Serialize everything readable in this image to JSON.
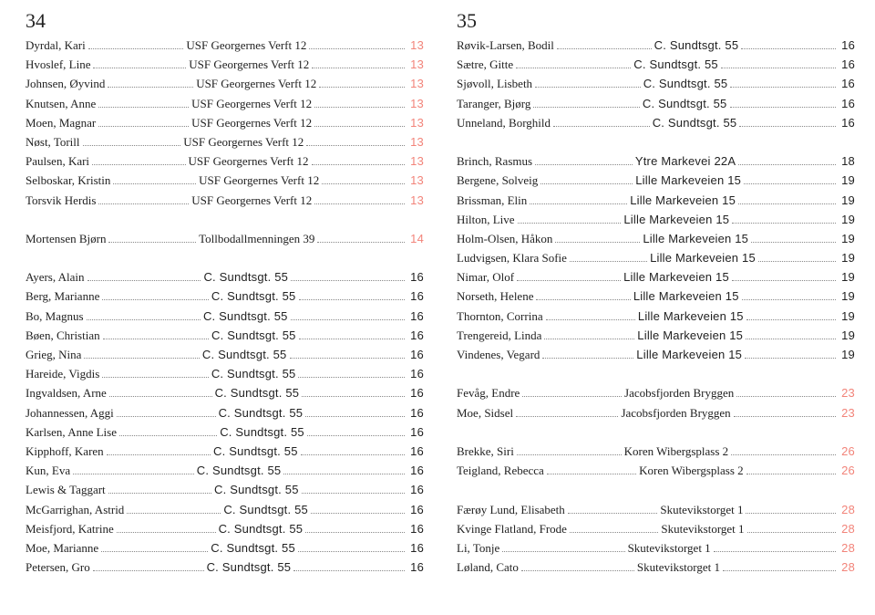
{
  "left": {
    "page": "34",
    "groups": [
      [
        {
          "name": "Dyrdal, Kari",
          "addr": "USF Georgernes Verft 12",
          "num": "13",
          "style": "coral"
        },
        {
          "name": "Hvoslef, Line",
          "addr": "USF Georgernes Verft 12",
          "num": "13",
          "style": "coral"
        },
        {
          "name": "Johnsen, Øyvind",
          "addr": "USF Georgernes Verft 12",
          "num": "13",
          "style": "coral"
        },
        {
          "name": "Knutsen, Anne",
          "addr": "USF Georgernes Verft 12",
          "num": "13",
          "style": "coral"
        },
        {
          "name": "Moen, Magnar",
          "addr": "USF Georgernes Verft 12",
          "num": "13",
          "style": "coral"
        },
        {
          "name": "Nøst, Torill",
          "addr": "USF Georgernes Verft 12",
          "num": "13",
          "style": "coral"
        },
        {
          "name": "Paulsen, Kari",
          "addr": "USF Georgernes Verft 12",
          "num": "13",
          "style": "coral"
        },
        {
          "name": "Selboskar, Kristin",
          "addr": "USF Georgernes Verft 12",
          "num": "13",
          "style": "coral"
        },
        {
          "name": "Torsvik Herdis",
          "addr": "USF Georgernes Verft 12",
          "num": "13",
          "style": "coral"
        }
      ],
      [
        {
          "name": "Mortensen Bjørn",
          "addr": "Tollbodallmenningen 39",
          "num": "14",
          "style": "coral"
        }
      ],
      [
        {
          "name": "Ayers, Alain",
          "addr": "C. Sundtsgt. 55",
          "num": "16",
          "style": "sans"
        },
        {
          "name": "Berg, Marianne",
          "addr": "C. Sundtsgt. 55",
          "num": "16",
          "style": "sans"
        },
        {
          "name": "Bo, Magnus",
          "addr": "C. Sundtsgt. 55",
          "num": "16",
          "style": "sans"
        },
        {
          "name": "Bøen, Christian",
          "addr": "C. Sundtsgt. 55",
          "num": "16",
          "style": "sans"
        },
        {
          "name": "Grieg, Nina",
          "addr": "C. Sundtsgt. 55",
          "num": "16",
          "style": "sans"
        },
        {
          "name": "Hareide, Vigdis",
          "addr": "C. Sundtsgt. 55",
          "num": "16",
          "style": "sans"
        },
        {
          "name": "Ingvaldsen, Arne",
          "addr": "C. Sundtsgt. 55",
          "num": "16",
          "style": "sans"
        },
        {
          "name": "Johannessen, Aggi",
          "addr": "C. Sundtsgt. 55",
          "num": "16",
          "style": "sans"
        },
        {
          "name": "Karlsen, Anne Lise",
          "addr": "C. Sundtsgt. 55",
          "num": "16",
          "style": "sans"
        },
        {
          "name": "Kipphoff, Karen",
          "addr": "C. Sundtsgt. 55",
          "num": "16",
          "style": "sans"
        },
        {
          "name": "Kun, Eva",
          "addr": "C. Sundtsgt. 55",
          "num": "16",
          "style": "sans"
        },
        {
          "name": "Lewis & Taggart",
          "addr": "C. Sundtsgt. 55",
          "num": "16",
          "style": "sans"
        },
        {
          "name": "McGarrighan, Astrid",
          "addr": "C. Sundtsgt. 55",
          "num": "16",
          "style": "sans"
        },
        {
          "name": "Meisfjord, Katrine",
          "addr": "C. Sundtsgt. 55",
          "num": "16",
          "style": "sans"
        },
        {
          "name": "Moe, Marianne",
          "addr": "C. Sundtsgt. 55",
          "num": "16",
          "style": "sans"
        },
        {
          "name": "Petersen, Gro",
          "addr": "C. Sundtsgt. 55",
          "num": "16",
          "style": "sans"
        }
      ]
    ]
  },
  "right": {
    "page": "35",
    "groups": [
      [
        {
          "name": "Røvik-Larsen, Bodil",
          "addr": "C. Sundtsgt. 55",
          "num": "16",
          "style": "sans"
        },
        {
          "name": "Sætre, Gitte",
          "addr": "C. Sundtsgt. 55",
          "num": "16",
          "style": "sans"
        },
        {
          "name": "Sjøvoll, Lisbeth",
          "addr": "C. Sundtsgt. 55",
          "num": "16",
          "style": "sans"
        },
        {
          "name": "Taranger, Bjørg",
          "addr": "C. Sundtsgt. 55",
          "num": "16",
          "style": "sans"
        },
        {
          "name": "Unneland, Borghild",
          "addr": "C. Sundtsgt. 55",
          "num": "16",
          "style": "sans"
        }
      ],
      [
        {
          "name": "Brinch, Rasmus",
          "addr": "Ytre Markevei 22A",
          "num": "18",
          "style": "sans"
        },
        {
          "name": "Bergene, Solveig",
          "addr": "Lille Markeveien 15",
          "num": "19",
          "style": "sans"
        },
        {
          "name": "Brissman, Elin",
          "addr": "Lille Markeveien 15",
          "num": "19",
          "style": "sans"
        },
        {
          "name": "Hilton, Live",
          "addr": "Lille Markeveien 15",
          "num": "19",
          "style": "sans"
        },
        {
          "name": "Holm-Olsen, Håkon",
          "addr": "Lille Markeveien 15",
          "num": "19",
          "style": "sans"
        },
        {
          "name": "Ludvigsen, Klara Sofie",
          "addr": "Lille Markeveien 15",
          "num": "19",
          "style": "sans"
        },
        {
          "name": "Nimar, Olof",
          "addr": "Lille Markeveien 15",
          "num": "19",
          "style": "sans"
        },
        {
          "name": "Norseth, Helene",
          "addr": "Lille Markeveien 15",
          "num": "19",
          "style": "sans"
        },
        {
          "name": "Thornton, Corrina",
          "addr": "Lille Markeveien 15",
          "num": "19",
          "style": "sans"
        },
        {
          "name": "Trengereid, Linda",
          "addr": "Lille Markeveien 15",
          "num": "19",
          "style": "sans"
        },
        {
          "name": "Vindenes, Vegard",
          "addr": "Lille Markeveien 15",
          "num": "19",
          "style": "sans"
        }
      ],
      [
        {
          "name": "Fevåg, Endre",
          "addr": "Jacobsfjorden Bryggen",
          "num": "23",
          "style": "coral"
        },
        {
          "name": "Moe, Sidsel",
          "addr": "Jacobsfjorden Bryggen",
          "num": "23",
          "style": "coral"
        }
      ],
      [
        {
          "name": "Brekke, Siri",
          "addr": "Koren Wibergsplass 2",
          "num": "26",
          "style": "coral"
        },
        {
          "name": "Teigland, Rebecca",
          "addr": "Koren Wibergsplass 2",
          "num": "26",
          "style": "coral"
        }
      ],
      [
        {
          "name": "Færøy Lund, Elisabeth",
          "addr": "Skutevikstorget 1",
          "num": "28",
          "style": "coral"
        },
        {
          "name": "Kvinge Flatland, Frode",
          "addr": "Skutevikstorget 1",
          "num": "28",
          "style": "coral"
        },
        {
          "name": "Li, Tonje",
          "addr": "Skutevikstorget 1",
          "num": "28",
          "style": "coral"
        },
        {
          "name": "Løland, Cato",
          "addr": "Skutevikstorget 1",
          "num": "28",
          "style": "coral"
        }
      ]
    ]
  }
}
